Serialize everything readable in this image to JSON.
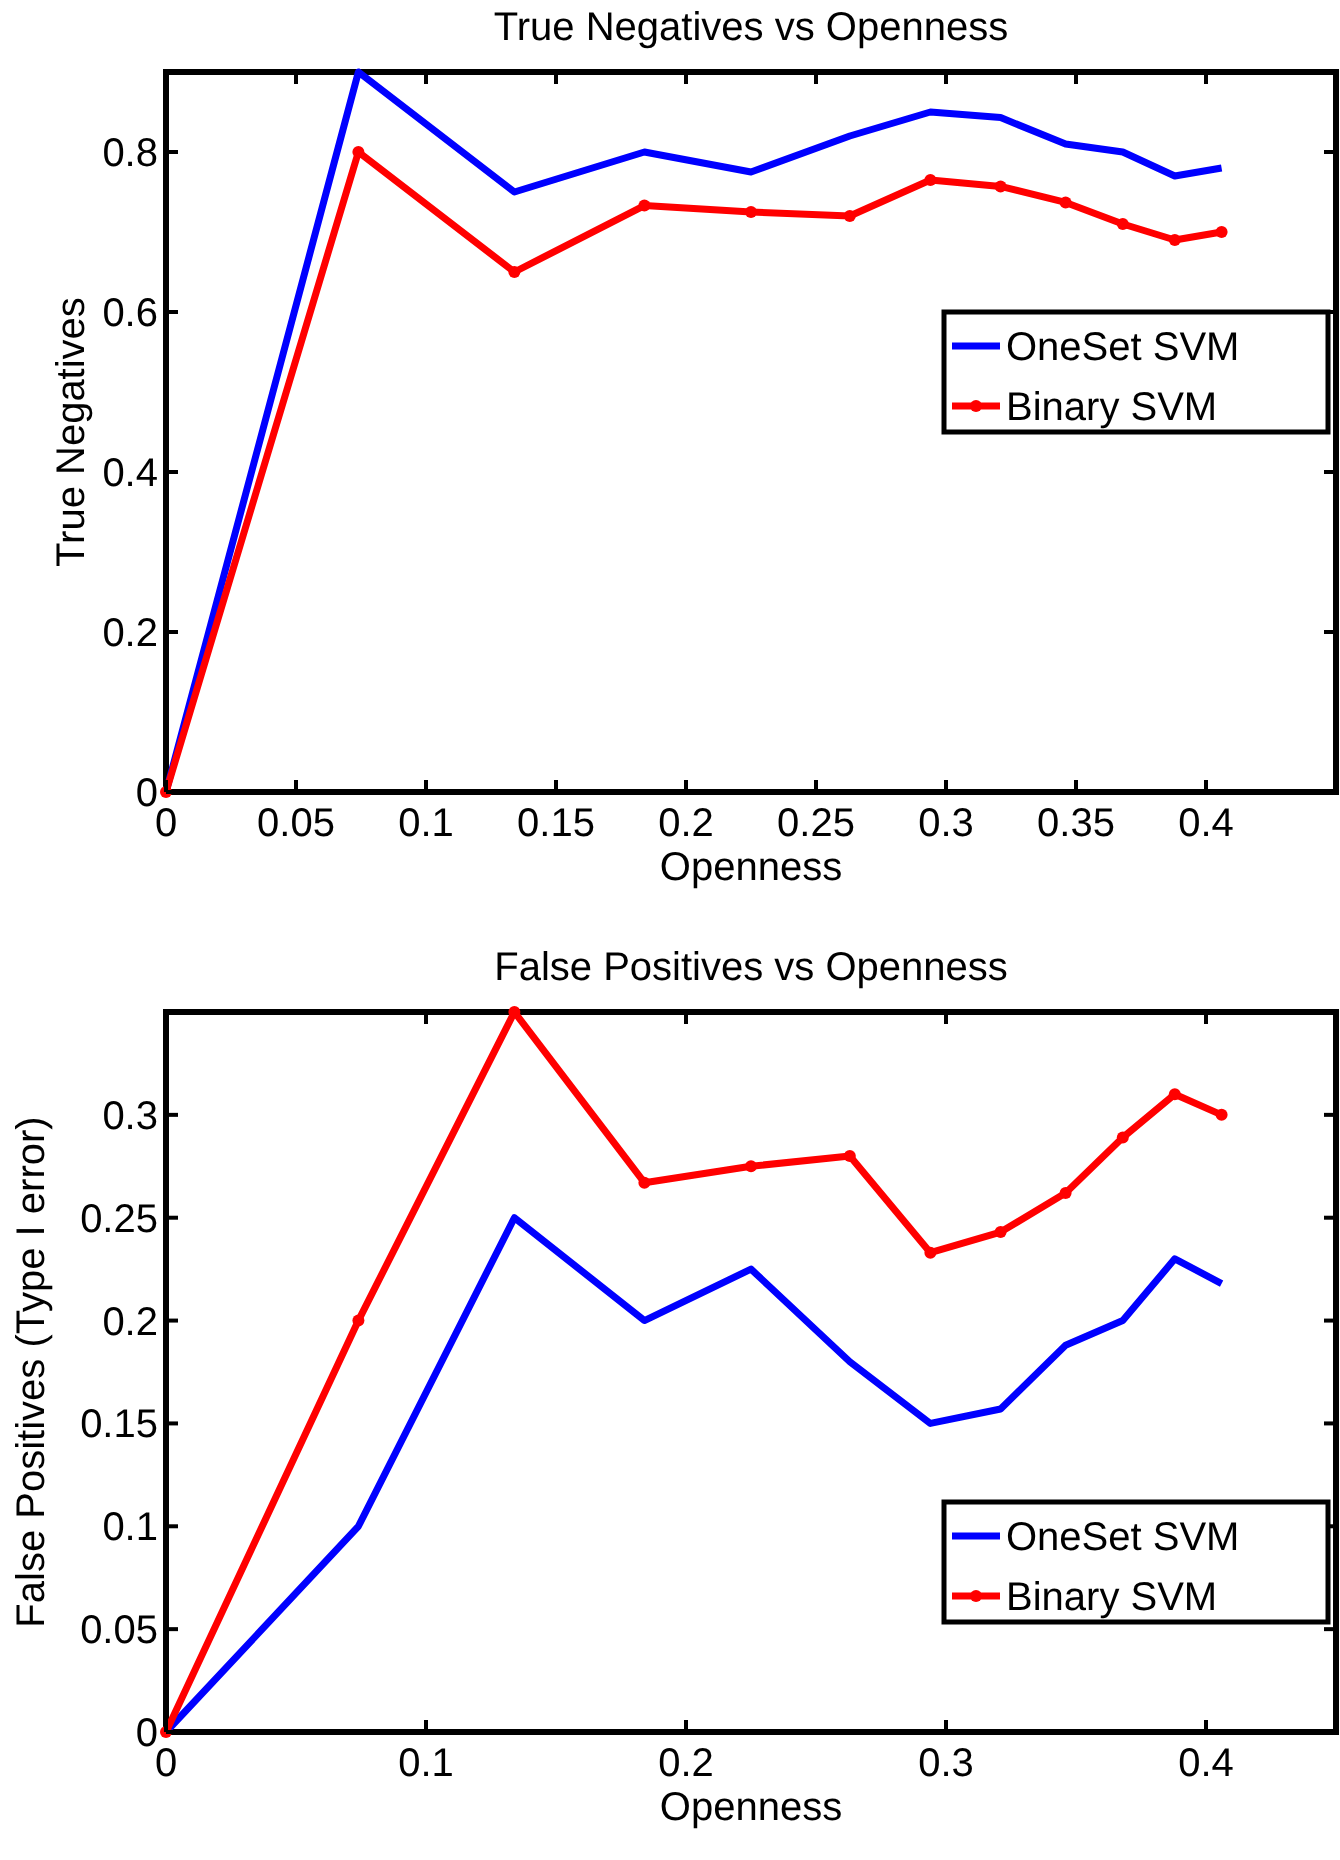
{
  "chart_data": [
    {
      "type": "line",
      "title": "True Negatives vs Openness",
      "xlabel": "Openness",
      "ylabel": "True Negatives",
      "x": [
        0,
        0.074,
        0.134,
        0.184,
        0.225,
        0.263,
        0.294,
        0.321,
        0.346,
        0.368,
        0.388,
        0.406
      ],
      "series": [
        {
          "name": "OneSet SVM",
          "color": "#0000ff",
          "marker": "none",
          "values": [
            0,
            0.9,
            0.75,
            0.8,
            0.775,
            0.82,
            0.85,
            0.843,
            0.81,
            0.8,
            0.77,
            0.78
          ]
        },
        {
          "name": "Binary SVM",
          "color": "#ff0000",
          "marker": "circle",
          "values": [
            0,
            0.8,
            0.65,
            0.733,
            0.725,
            0.72,
            0.765,
            0.757,
            0.737,
            0.71,
            0.69,
            0.7
          ]
        }
      ],
      "xlim": [
        0,
        0.45
      ],
      "ylim": [
        0,
        0.9
      ],
      "xticks": [
        0,
        0.05,
        0.1,
        0.15,
        0.2,
        0.25,
        0.3,
        0.35,
        0.4
      ],
      "yticks": [
        0,
        0.2,
        0.4,
        0.6,
        0.8
      ],
      "legend": "right",
      "grid": false
    },
    {
      "type": "line",
      "title": "False Positives vs Openness",
      "xlabel": "Openness",
      "ylabel": "False Positives (Type I error)",
      "x": [
        0,
        0.074,
        0.134,
        0.184,
        0.225,
        0.263,
        0.294,
        0.321,
        0.346,
        0.368,
        0.388,
        0.406
      ],
      "series": [
        {
          "name": "OneSet SVM",
          "color": "#0000ff",
          "marker": "none",
          "values": [
            0,
            0.1,
            0.25,
            0.2,
            0.225,
            0.18,
            0.15,
            0.157,
            0.188,
            0.2,
            0.23,
            0.218
          ]
        },
        {
          "name": "Binary SVM",
          "color": "#ff0000",
          "marker": "circle",
          "values": [
            0,
            0.2,
            0.35,
            0.267,
            0.275,
            0.28,
            0.233,
            0.243,
            0.262,
            0.289,
            0.31,
            0.3
          ]
        }
      ],
      "xlim": [
        0,
        0.45
      ],
      "ylim": [
        0,
        0.35
      ],
      "xticks": [
        0,
        0.1,
        0.2,
        0.3,
        0.4
      ],
      "yticks": [
        0,
        0.05,
        0.1,
        0.15,
        0.2,
        0.25,
        0.3
      ],
      "legend": "bottom right",
      "grid": false
    }
  ]
}
